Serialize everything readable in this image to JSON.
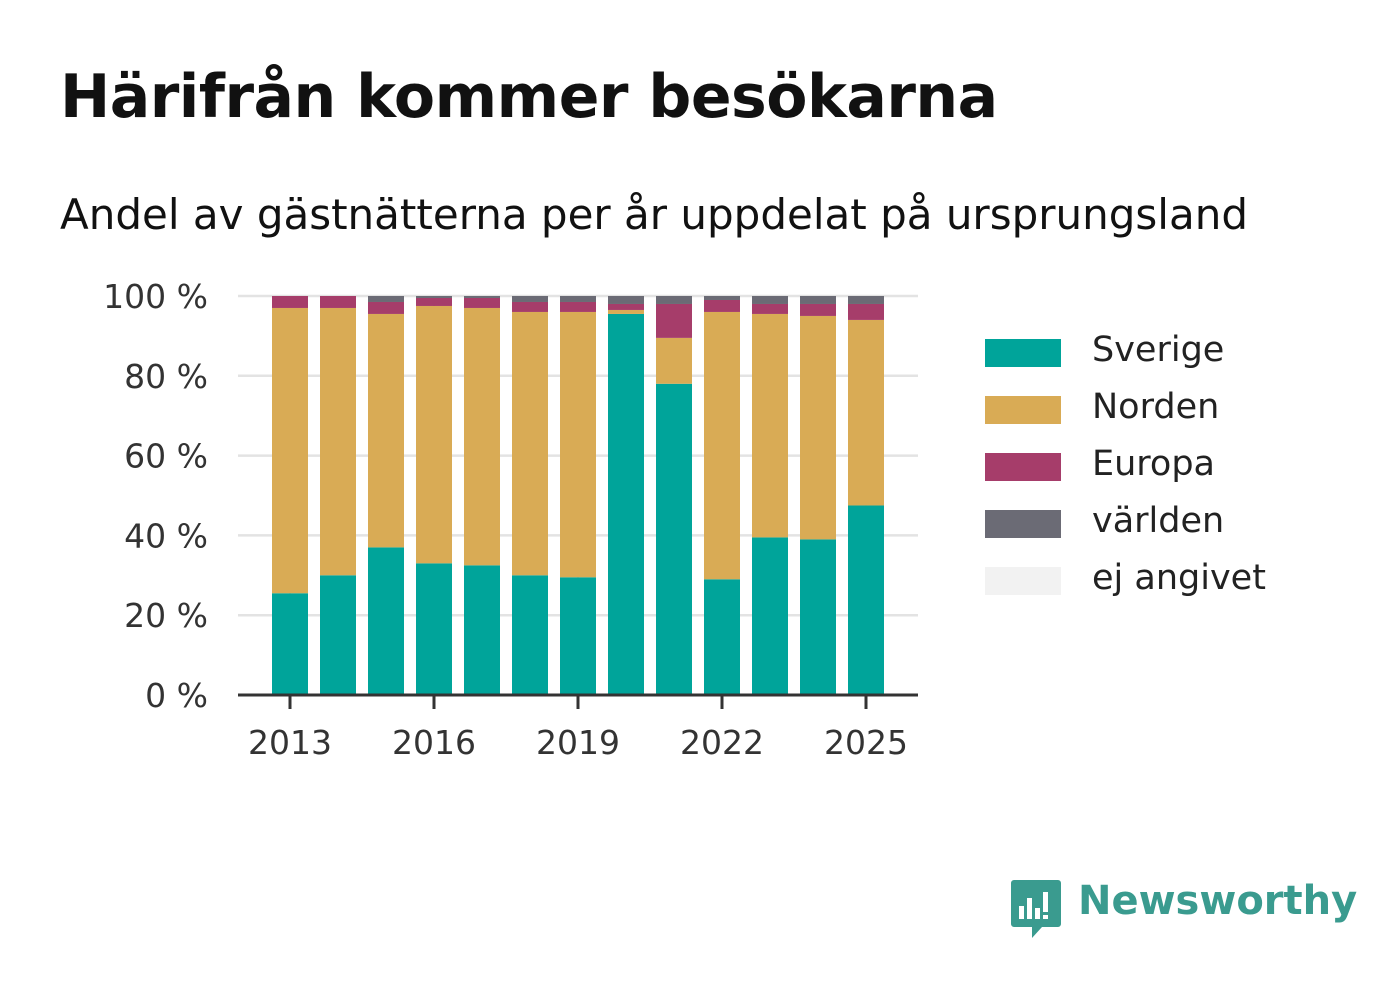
{
  "title": "Härifrån kommer besökarna",
  "subtitle": "Andel av gästnätterna per år uppdelat på ursprungsland",
  "brand": {
    "name": "Newsworthy",
    "icon": "newsworthy-logo-icon",
    "color": "#3a9b8f"
  },
  "chart_data": {
    "type": "bar",
    "stacked": true,
    "title": "Härifrån kommer besökarna",
    "subtitle": "Andel av gästnätterna per år uppdelat på ursprungsland",
    "xlabel": "",
    "ylabel": "",
    "categories": [
      "2013",
      "2014",
      "2015",
      "2016",
      "2017",
      "2018",
      "2019",
      "2020",
      "2021",
      "2022",
      "2023",
      "2024",
      "2025"
    ],
    "x_tick_labels": [
      "2013",
      "2016",
      "2019",
      "2022",
      "2025"
    ],
    "y_tick_labels": [
      "0 %",
      "20 %",
      "40 %",
      "60 %",
      "80 %",
      "100 %"
    ],
    "ylim": [
      0,
      100
    ],
    "grid": true,
    "legend_position": "right",
    "series": [
      {
        "name": "Sverige",
        "color": "#00a49a",
        "values": [
          25.5,
          30,
          37,
          33,
          32.5,
          30,
          29.5,
          95.5,
          78,
          29,
          39.5,
          39,
          47.5
        ]
      },
      {
        "name": "Norden",
        "color": "#d9ab55",
        "values": [
          71.5,
          67,
          58.5,
          64.5,
          64.5,
          66,
          66.5,
          1,
          11.5,
          67,
          56,
          56,
          46.5
        ]
      },
      {
        "name": "Europa",
        "color": "#a63d6a",
        "values": [
          3,
          3,
          3,
          2,
          2.5,
          2.5,
          2.5,
          1.5,
          8.5,
          3,
          2.5,
          3,
          4
        ]
      },
      {
        "name": "världen",
        "color": "#6b6b75",
        "values": [
          0,
          0,
          1.5,
          0.5,
          0.5,
          1.5,
          1.5,
          2,
          2,
          1,
          2,
          2,
          2
        ]
      },
      {
        "name": "ej angivet",
        "color": "#f2f2f2",
        "values": [
          0,
          0,
          0,
          0,
          0,
          0,
          0,
          0,
          0,
          0,
          0,
          0,
          0
        ]
      }
    ]
  }
}
